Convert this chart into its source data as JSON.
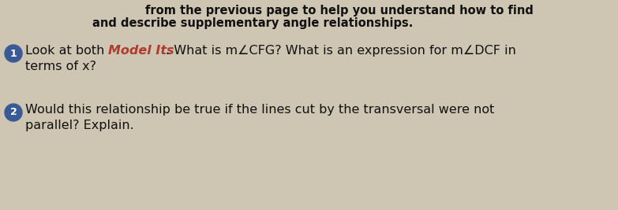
{
  "bg_color": "#cec5b2",
  "header_line1": "from the previous page to help you understand how to find",
  "header_line2": "and describe supplementary angle relationships.",
  "q1_num": "1",
  "q1_before": "Look at both ",
  "q1_model": "Model Its",
  "q1_model_color": "#b03a2e",
  "q1_after": ". What is m∠CFG? What is an expression for m∠DCF in",
  "q1_line2": "terms of x?",
  "q2_num": "2",
  "q2_line1": "Would this relationship be true if the lines cut by the transversal were not",
  "q2_line2": "parallel? Explain.",
  "circle_color": "#3a5a96",
  "text_color": "#111111",
  "header_color": "#111111",
  "fs_header": 10.5,
  "fs_body": 11.5,
  "fs_num": 9
}
